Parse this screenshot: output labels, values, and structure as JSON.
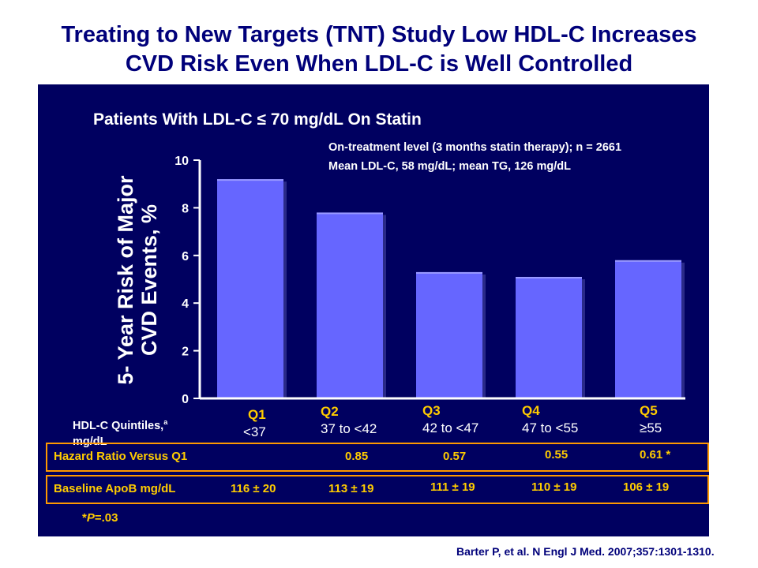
{
  "title_line1": "Treating to New Targets (TNT) Study Low HDL-C Increases",
  "title_line2": "CVD Risk Even When  LDL-C is Well Controlled",
  "subtitle": "Patients With LDL-C ≤ 70 mg/dL On Statin",
  "note_line1": "On-treatment level (3 months statin therapy); n = 2661",
  "note_line2": "Mean LDL-C, 58 mg/dL; mean TG, 126 mg/dL",
  "hdl_label_line1": "HDL-C Quintiles,",
  "hdl_label_sup": "a",
  "hdl_label_line2": "mg/dL",
  "quintiles": [
    {
      "name": "Q1",
      "range": "<37"
    },
    {
      "name": "Q2",
      "range": "37 to <42"
    },
    {
      "name": "Q3",
      "range": "42 to <47"
    },
    {
      "name": "Q4",
      "range": "47 to <55"
    },
    {
      "name": "Q5",
      "range": "≥55"
    }
  ],
  "hazard_label": "Hazard Ratio Versus Q1",
  "hazard_values": [
    "0.85",
    "0.57",
    "0.55",
    "0.61 *"
  ],
  "apob_label": "Baseline ApoB mg/dL",
  "apob_values": [
    "116 ± 20",
    "113 ± 19",
    "111 ± 19",
    "110 ± 19",
    "106 ± 19"
  ],
  "p_note_prefix": "*",
  "p_note_italic": "P",
  "p_note_rest": "=.03",
  "citation": "Barter P, et al. N Engl J Med. 2007;357:1301-1310.",
  "colors": {
    "panel": "#000060",
    "bar": "#6666ff",
    "title": "#00007a",
    "accent": "#ffcc00",
    "box": "#ff9900"
  },
  "chart_data": {
    "type": "bar",
    "categories": [
      "Q1",
      "Q2",
      "Q3",
      "Q4",
      "Q5"
    ],
    "values": [
      9.2,
      7.8,
      5.3,
      5.1,
      5.8
    ],
    "ylabel_line1": "5- Year Risk of Major",
    "ylabel_line2": "CVD Events, %",
    "ylim": [
      0,
      10
    ],
    "yticks": [
      "0",
      "2",
      "4",
      "6",
      "8",
      "10"
    ],
    "grid": false
  }
}
